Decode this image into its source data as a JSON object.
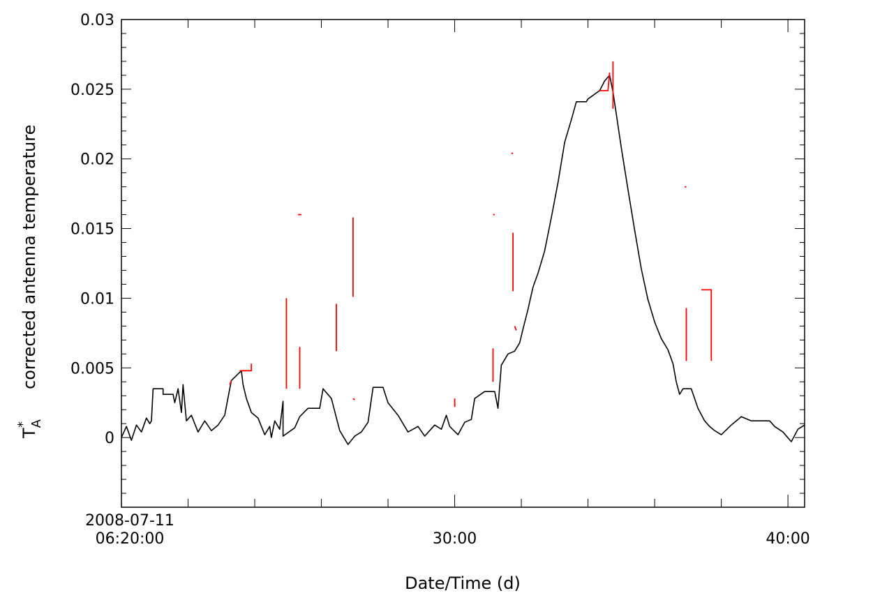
{
  "chart_data": {
    "type": "line",
    "title": "",
    "xlabel": "Date/Time (d)",
    "ylabel_symbol": "T",
    "ylabel_superscript": "*",
    "ylabel_subscript": "A",
    "ylabel": "corrected antenna temperature",
    "x_unit": "minutes after 2008-07-11 06:20:00",
    "xlim": [
      0,
      20.5
    ],
    "ylim": [
      -0.005,
      0.03
    ],
    "x_tick_labels": [
      {
        "x": 0,
        "lines": [
          "2008-07-11",
          "06:20:00"
        ]
      },
      {
        "x": 10,
        "lines": [
          "30:00"
        ]
      },
      {
        "x": 20,
        "lines": [
          "40:00"
        ]
      }
    ],
    "x_minor_ticks": [
      2,
      4,
      6,
      8,
      12,
      14,
      16,
      18
    ],
    "y_ticks": [
      0,
      0.005,
      0.01,
      0.015,
      0.02,
      0.025,
      0.03
    ],
    "y_tick_labels": [
      "0",
      "0.005",
      "0.01",
      "0.015",
      "0.02",
      "0.025",
      "0.03"
    ],
    "grid": false,
    "series": [
      {
        "color": "#000000",
        "points": [
          [
            0.0,
            0.0
          ],
          [
            0.15,
            0.0008
          ],
          [
            0.3,
            -0.0002
          ],
          [
            0.45,
            0.0009
          ],
          [
            0.6,
            0.0004
          ],
          [
            0.75,
            0.0014
          ],
          [
            0.85,
            0.001
          ],
          [
            0.9,
            0.0012
          ],
          [
            0.95,
            0.0035
          ],
          [
            1.25,
            0.0035
          ],
          [
            1.25,
            0.0031
          ],
          [
            1.55,
            0.0031
          ],
          [
            1.6,
            0.0025
          ],
          [
            1.7,
            0.0035
          ],
          [
            1.8,
            0.0018
          ],
          [
            1.85,
            0.0038
          ],
          [
            1.95,
            0.0012
          ],
          [
            2.1,
            0.0016
          ],
          [
            2.3,
            0.0004
          ],
          [
            2.5,
            0.0012
          ],
          [
            2.7,
            0.0005
          ],
          [
            2.9,
            0.0009
          ],
          [
            3.1,
            0.0016
          ],
          [
            3.25,
            0.0035
          ],
          [
            3.3,
            0.0041
          ],
          [
            3.6,
            0.0048
          ],
          [
            3.65,
            0.0038
          ],
          [
            3.75,
            0.0028
          ],
          [
            3.9,
            0.0018
          ],
          [
            4.1,
            0.0014
          ],
          [
            4.3,
            0.0002
          ],
          [
            4.45,
            0.0008
          ],
          [
            4.5,
            0.0
          ],
          [
            4.6,
            0.0012
          ],
          [
            4.75,
            0.0006
          ],
          [
            4.85,
            0.0026
          ],
          [
            4.85,
            0.0001
          ],
          [
            5.2,
            0.0007
          ],
          [
            5.35,
            0.0015
          ],
          [
            5.6,
            0.0021
          ],
          [
            5.95,
            0.0021
          ],
          [
            6.05,
            0.0035
          ],
          [
            6.3,
            0.0028
          ],
          [
            6.55,
            0.0005
          ],
          [
            6.8,
            -0.0005
          ],
          [
            7.0,
            0.0001
          ],
          [
            7.2,
            0.0004
          ],
          [
            7.4,
            0.0011
          ],
          [
            7.55,
            0.0036
          ],
          [
            7.85,
            0.0036
          ],
          [
            8.0,
            0.0025
          ],
          [
            8.3,
            0.0016
          ],
          [
            8.6,
            0.0004
          ],
          [
            8.9,
            0.0008
          ],
          [
            9.1,
            0.0001
          ],
          [
            9.4,
            0.0009
          ],
          [
            9.6,
            0.0006
          ],
          [
            9.75,
            0.0016
          ],
          [
            9.85,
            0.0008
          ],
          [
            10.1,
            0.0002
          ],
          [
            10.3,
            0.0011
          ],
          [
            10.5,
            0.0013
          ],
          [
            10.6,
            0.0028
          ],
          [
            10.9,
            0.0033
          ],
          [
            11.2,
            0.0033
          ],
          [
            11.3,
            0.0021
          ],
          [
            11.4,
            0.0052
          ],
          [
            11.5,
            0.0056
          ],
          [
            11.6,
            0.006
          ],
          [
            11.8,
            0.0062
          ],
          [
            11.95,
            0.0068
          ],
          [
            12.05,
            0.0078
          ],
          [
            12.2,
            0.0092
          ],
          [
            12.35,
            0.0108
          ],
          [
            12.5,
            0.0118
          ],
          [
            12.7,
            0.0134
          ],
          [
            12.9,
            0.0158
          ],
          [
            13.1,
            0.0183
          ],
          [
            13.3,
            0.0212
          ],
          [
            13.5,
            0.0228
          ],
          [
            13.65,
            0.0241
          ],
          [
            13.95,
            0.0241
          ],
          [
            14.0,
            0.0243
          ],
          [
            14.35,
            0.0249
          ],
          [
            14.5,
            0.0256
          ],
          [
            14.65,
            0.026
          ],
          [
            14.75,
            0.0248
          ],
          [
            14.85,
            0.0232
          ],
          [
            15.0,
            0.0208
          ],
          [
            15.2,
            0.0178
          ],
          [
            15.4,
            0.0149
          ],
          [
            15.6,
            0.0121
          ],
          [
            15.8,
            0.0099
          ],
          [
            16.0,
            0.0083
          ],
          [
            16.2,
            0.0071
          ],
          [
            16.4,
            0.0063
          ],
          [
            16.55,
            0.0053
          ],
          [
            16.65,
            0.004
          ],
          [
            16.75,
            0.0031
          ],
          [
            16.85,
            0.0035
          ],
          [
            17.1,
            0.0035
          ],
          [
            17.3,
            0.0021
          ],
          [
            17.5,
            0.0012
          ],
          [
            17.65,
            0.0008
          ],
          [
            17.8,
            0.0005
          ],
          [
            18.0,
            0.0002
          ],
          [
            18.3,
            0.0009
          ],
          [
            18.6,
            0.0015
          ],
          [
            18.9,
            0.0012
          ],
          [
            19.2,
            0.0012
          ],
          [
            19.45,
            0.0012
          ],
          [
            19.6,
            0.0008
          ],
          [
            19.85,
            0.0004
          ],
          [
            20.1,
            -0.0003
          ],
          [
            20.3,
            0.0006
          ],
          [
            20.5,
            0.0009
          ]
        ]
      },
      {
        "color": "#ff0000",
        "segments": [
          [
            [
              3.25,
              0.0038
            ],
            [
              3.3,
              0.0041
            ]
          ],
          [
            [
              3.55,
              0.0048
            ],
            [
              3.9,
              0.0048
            ],
            [
              3.9,
              0.0053
            ]
          ],
          [
            [
              4.95,
              0.0035
            ],
            [
              4.95,
              0.01
            ]
          ],
          [
            [
              5.3,
              0.016
            ],
            [
              5.4,
              0.016
            ]
          ],
          [
            [
              5.35,
              0.0065
            ],
            [
              5.35,
              0.0035
            ]
          ],
          [
            [
              6.45,
              0.0096
            ],
            [
              6.45,
              0.0062
            ]
          ],
          [
            [
              6.95,
              0.0158
            ],
            [
              6.95,
              0.0101
            ]
          ],
          [
            [
              6.95,
              0.0028
            ],
            [
              7.0,
              0.0027
            ]
          ],
          [
            [
              10.0,
              0.0028
            ],
            [
              10.0,
              0.0022
            ]
          ],
          [
            [
              11.15,
              0.0064
            ],
            [
              11.15,
              0.004
            ]
          ],
          [
            [
              11.15,
              0.016
            ],
            [
              11.2,
              0.016
            ]
          ],
          [
            [
              11.7,
              0.0204
            ],
            [
              11.75,
              0.0204
            ]
          ],
          [
            [
              11.75,
              0.0147
            ],
            [
              11.75,
              0.0105
            ]
          ],
          [
            [
              11.8,
              0.008
            ],
            [
              11.85,
              0.0077
            ]
          ],
          [
            [
              14.35,
              0.0249
            ],
            [
              14.6,
              0.0249
            ],
            [
              14.65,
              0.0262
            ]
          ],
          [
            [
              14.75,
              0.027
            ],
            [
              14.75,
              0.0236
            ]
          ],
          [
            [
              16.9,
              0.018
            ],
            [
              16.95,
              0.018
            ]
          ],
          [
            [
              16.95,
              0.0093
            ],
            [
              16.95,
              0.0055
            ]
          ],
          [
            [
              17.4,
              0.0106
            ],
            [
              17.7,
              0.0106
            ],
            [
              17.7,
              0.0055
            ]
          ]
        ]
      }
    ]
  }
}
